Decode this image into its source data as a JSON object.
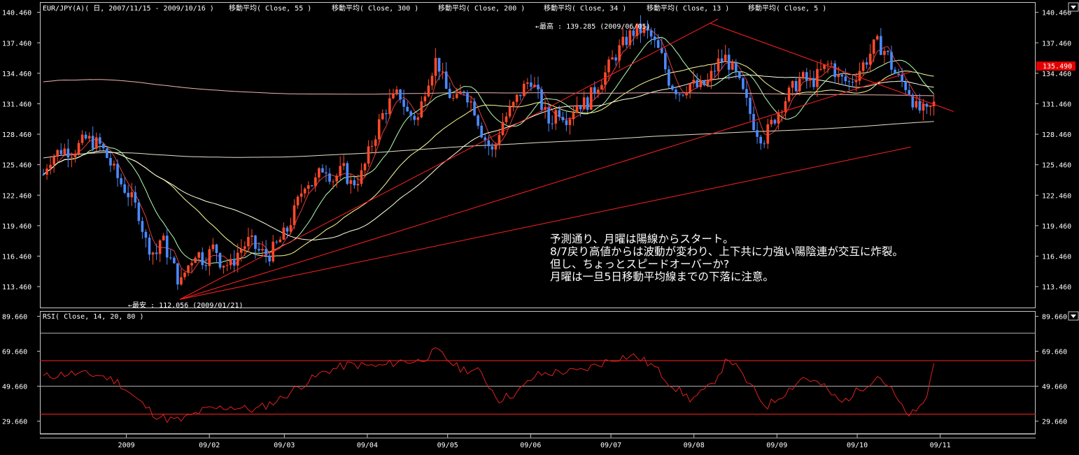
{
  "main_panel": {
    "header_title": "EUR/JPY(A)( 日, 2007/11/15 - 2009/10/16 )",
    "indicators": [
      "移動平均( Close, 55 )",
      "移動平均( Close, 300 )",
      "移動平均( Close, 200 )",
      "移動平均( Close, 34 )",
      "移動平均( Close, 13 )",
      "移動平均( Close, 5 )"
    ],
    "high_annotation": "←最高 : 139.285 (2009/06/05)",
    "low_annotation": "←最安 : 112.056 (2009/01/21)",
    "current_price_label": "135.490",
    "comment_lines": [
      "予測通り、月曜は陽線からスタート。",
      "8/7戻り高値からは波動が変わり、上下共に力強い陽陰連が交互に炸裂。",
      "但し、ちょっとスピードオーバーか?",
      "月曜は一旦5日移動平均線までの下落に注意。"
    ]
  },
  "rsi_panel": {
    "header_title": "RSI( Close, 14, 20, 80 )"
  },
  "x_axis_labels": [
    "2009",
    "09/02",
    "09/03",
    "09/04",
    "09/05",
    "09/06",
    "09/07",
    "09/08",
    "09/09",
    "09/10",
    "09/11"
  ],
  "colors": {
    "background": "#000000",
    "axis": "#c8c8c8",
    "trend_line": "#ff2020",
    "rsi_line": "#e02020",
    "candle_up": "#ff4a2a",
    "candle_down": "#4a8aff",
    "current_price_bg": "#e00000"
  },
  "chart_data": [
    {
      "type": "candlestick",
      "title": "EUR/JPY(A)( 日, 2007/11/15 - 2009/10/16 )",
      "y_ticks": [
        140.46,
        137.46,
        134.46,
        131.46,
        128.46,
        125.46,
        122.46,
        119.46,
        116.46,
        113.46
      ],
      "ylim": [
        111.4,
        141.4
      ],
      "x_range": [
        "2008/12/01",
        "2009/10/30"
      ],
      "last_price": 135.49,
      "highest": {
        "value": 139.285,
        "date": "2009/06/05"
      },
      "lowest": {
        "value": 112.056,
        "date": "2009/01/21"
      },
      "close_path": [
        [
          "2008-12-01",
          124.5
        ],
        [
          "2008-12-03",
          126.0
        ],
        [
          "2008-12-08",
          127.0
        ],
        [
          "2008-12-12",
          126.8
        ],
        [
          "2008-12-17",
          128.0
        ],
        [
          "2008-12-22",
          127.4
        ],
        [
          "2008-12-24",
          126.6
        ],
        [
          "2008-12-29",
          124.0
        ],
        [
          "2009-01-02",
          122.5
        ],
        [
          "2009-01-06",
          120.5
        ],
        [
          "2009-01-08",
          118.0
        ],
        [
          "2009-01-12",
          116.5
        ],
        [
          "2009-01-14",
          118.5
        ],
        [
          "2009-01-16",
          117.0
        ],
        [
          "2009-01-20",
          114.5
        ],
        [
          "2009-01-21",
          113.5
        ],
        [
          "2009-01-23",
          115.0
        ],
        [
          "2009-01-27",
          117.0
        ],
        [
          "2009-01-30",
          116.0
        ],
        [
          "2009-02-03",
          117.5
        ],
        [
          "2009-02-05",
          116.0
        ],
        [
          "2009-02-09",
          115.5
        ],
        [
          "2009-02-12",
          117.0
        ],
        [
          "2009-02-16",
          118.0
        ],
        [
          "2009-02-19",
          117.0
        ],
        [
          "2009-02-23",
          116.5
        ],
        [
          "2009-02-26",
          117.5
        ],
        [
          "2009-03-02",
          119.0
        ],
        [
          "2009-03-05",
          121.0
        ],
        [
          "2009-03-09",
          124.0
        ],
        [
          "2009-03-12",
          123.5
        ],
        [
          "2009-03-16",
          125.5
        ],
        [
          "2009-03-19",
          124.0
        ],
        [
          "2009-03-23",
          125.0
        ],
        [
          "2009-03-26",
          123.5
        ],
        [
          "2009-03-30",
          124.5
        ],
        [
          "2009-04-02",
          127.0
        ],
        [
          "2009-04-06",
          130.0
        ],
        [
          "2009-04-09",
          131.5
        ],
        [
          "2009-04-13",
          132.5
        ],
        [
          "2009-04-16",
          130.5
        ],
        [
          "2009-04-20",
          130.0
        ],
        [
          "2009-04-23",
          133.5
        ],
        [
          "2009-04-27",
          136.0
        ],
        [
          "2009-04-30",
          133.0
        ],
        [
          "2009-05-04",
          131.5
        ],
        [
          "2009-05-07",
          133.0
        ],
        [
          "2009-05-11",
          131.0
        ],
        [
          "2009-05-14",
          128.5
        ],
        [
          "2009-05-18",
          126.5
        ],
        [
          "2009-05-21",
          129.5
        ],
        [
          "2009-05-25",
          131.0
        ],
        [
          "2009-05-28",
          132.5
        ],
        [
          "2009-06-01",
          134.0
        ],
        [
          "2009-06-04",
          132.0
        ],
        [
          "2009-06-08",
          129.5
        ],
        [
          "2009-06-11",
          131.0
        ],
        [
          "2009-06-15",
          130.0
        ],
        [
          "2009-06-18",
          131.5
        ],
        [
          "2009-06-22",
          131.5
        ],
        [
          "2009-06-25",
          133.0
        ],
        [
          "2009-06-29",
          134.5
        ],
        [
          "2009-07-02",
          136.0
        ],
        [
          "2009-07-06",
          137.5
        ],
        [
          "2009-07-09",
          138.5
        ],
        [
          "2009-07-13",
          138.8
        ],
        [
          "2009-07-16",
          138.0
        ],
        [
          "2009-07-20",
          136.0
        ],
        [
          "2009-07-23",
          133.5
        ],
        [
          "2009-07-27",
          132.5
        ],
        [
          "2009-07-30",
          133.5
        ],
        [
          "2009-08-03",
          133.0
        ],
        [
          "2009-08-06",
          133.5
        ],
        [
          "2009-08-10",
          135.5
        ],
        [
          "2009-08-13",
          136.0
        ],
        [
          "2009-08-17",
          134.0
        ],
        [
          "2009-08-20",
          132.0
        ],
        [
          "2009-08-24",
          129.0
        ],
        [
          "2009-08-27",
          128.0
        ],
        [
          "2009-08-31",
          130.0
        ],
        [
          "2009-09-03",
          131.5
        ],
        [
          "2009-09-07",
          133.0
        ],
        [
          "2009-09-10",
          134.0
        ],
        [
          "2009-09-14",
          133.5
        ],
        [
          "2009-09-17",
          134.5
        ],
        [
          "2009-09-21",
          135.5
        ],
        [
          "2009-09-24",
          134.0
        ],
        [
          "2009-09-28",
          133.5
        ],
        [
          "2009-10-01",
          134.5
        ],
        [
          "2009-10-05",
          136.0
        ],
        [
          "2009-10-08",
          137.5
        ],
        [
          "2009-10-12",
          136.5
        ],
        [
          "2009-10-14",
          135.0
        ],
        [
          "2009-10-16",
          134.0
        ],
        [
          "2009-10-20",
          133.0
        ],
        [
          "2009-10-23",
          131.0
        ],
        [
          "2009-10-27",
          130.5
        ],
        [
          "2009-10-30",
          131.5
        ]
      ],
      "moving_averages": [
        {
          "name": "移動平均( Close, 5 )",
          "color": "#e03c3c"
        },
        {
          "name": "移動平均( Close, 13 )",
          "color": "#b4ffb4"
        },
        {
          "name": "移動平均( Close, 34 )",
          "color": "#ffff99"
        },
        {
          "name": "移動平均( Close, 55 )",
          "color": "#ffffe0"
        },
        {
          "name": "移動平均( Close, 200 )",
          "color": "#e8e0c8"
        },
        {
          "name": "移動平均( Close, 300 )",
          "color": "#f0b4b4"
        }
      ],
      "trend_lines": [
        {
          "from": [
            "2009-01-21",
            112.2
          ],
          "to": [
            "2009-08-10",
            139.8
          ]
        },
        {
          "from": [
            "2009-01-21",
            112.2
          ],
          "to": [
            "2009-10-21",
            134.6
          ]
        },
        {
          "from": [
            "2009-01-21",
            112.2
          ],
          "to": [
            "2009-10-21",
            127.2
          ]
        },
        {
          "from": [
            "2009-08-07",
            139.4
          ],
          "to": [
            "2009-11-06",
            130.7
          ]
        }
      ]
    },
    {
      "type": "line",
      "title": "RSI( Close, 14, 20, 80 )",
      "y_ticks": [
        89.66,
        69.66,
        49.66,
        29.66
      ],
      "ylim": [
        22.7,
        92.3
      ],
      "reference_lines": [
        80,
        64.3,
        49.66,
        33.7,
        20
      ],
      "series_path": [
        [
          "2008-12-01",
          55
        ],
        [
          "2008-12-10",
          57
        ],
        [
          "2008-12-22",
          56
        ],
        [
          "2008-12-29",
          52
        ],
        [
          "2009-01-05",
          42
        ],
        [
          "2009-01-12",
          33
        ],
        [
          "2009-01-16",
          31
        ],
        [
          "2009-01-21",
          30
        ],
        [
          "2009-01-30",
          36
        ],
        [
          "2009-02-09",
          38
        ],
        [
          "2009-02-18",
          36
        ],
        [
          "2009-02-27",
          42
        ],
        [
          "2009-03-06",
          49
        ],
        [
          "2009-03-16",
          58
        ],
        [
          "2009-03-25",
          62
        ],
        [
          "2009-04-06",
          61
        ],
        [
          "2009-04-13",
          64
        ],
        [
          "2009-04-20",
          64
        ],
        [
          "2009-04-27",
          70
        ],
        [
          "2009-05-05",
          60
        ],
        [
          "2009-05-13",
          58
        ],
        [
          "2009-05-20",
          42
        ],
        [
          "2009-05-27",
          46
        ],
        [
          "2009-06-03",
          56
        ],
        [
          "2009-06-12",
          58
        ],
        [
          "2009-06-19",
          58
        ],
        [
          "2009-06-26",
          62
        ],
        [
          "2009-07-03",
          66
        ],
        [
          "2009-07-10",
          67
        ],
        [
          "2009-07-17",
          61
        ],
        [
          "2009-07-24",
          50
        ],
        [
          "2009-07-31",
          42
        ],
        [
          "2009-08-07",
          49
        ],
        [
          "2009-08-14",
          66
        ],
        [
          "2009-08-21",
          52
        ],
        [
          "2009-08-28",
          38
        ],
        [
          "2009-09-04",
          46
        ],
        [
          "2009-09-11",
          55
        ],
        [
          "2009-09-18",
          50
        ],
        [
          "2009-09-25",
          40
        ],
        [
          "2009-10-02",
          48
        ],
        [
          "2009-10-09",
          56
        ],
        [
          "2009-10-14",
          47
        ],
        [
          "2009-10-19",
          34
        ],
        [
          "2009-10-23",
          34
        ],
        [
          "2009-10-27",
          44
        ],
        [
          "2009-10-30",
          65
        ]
      ]
    }
  ]
}
